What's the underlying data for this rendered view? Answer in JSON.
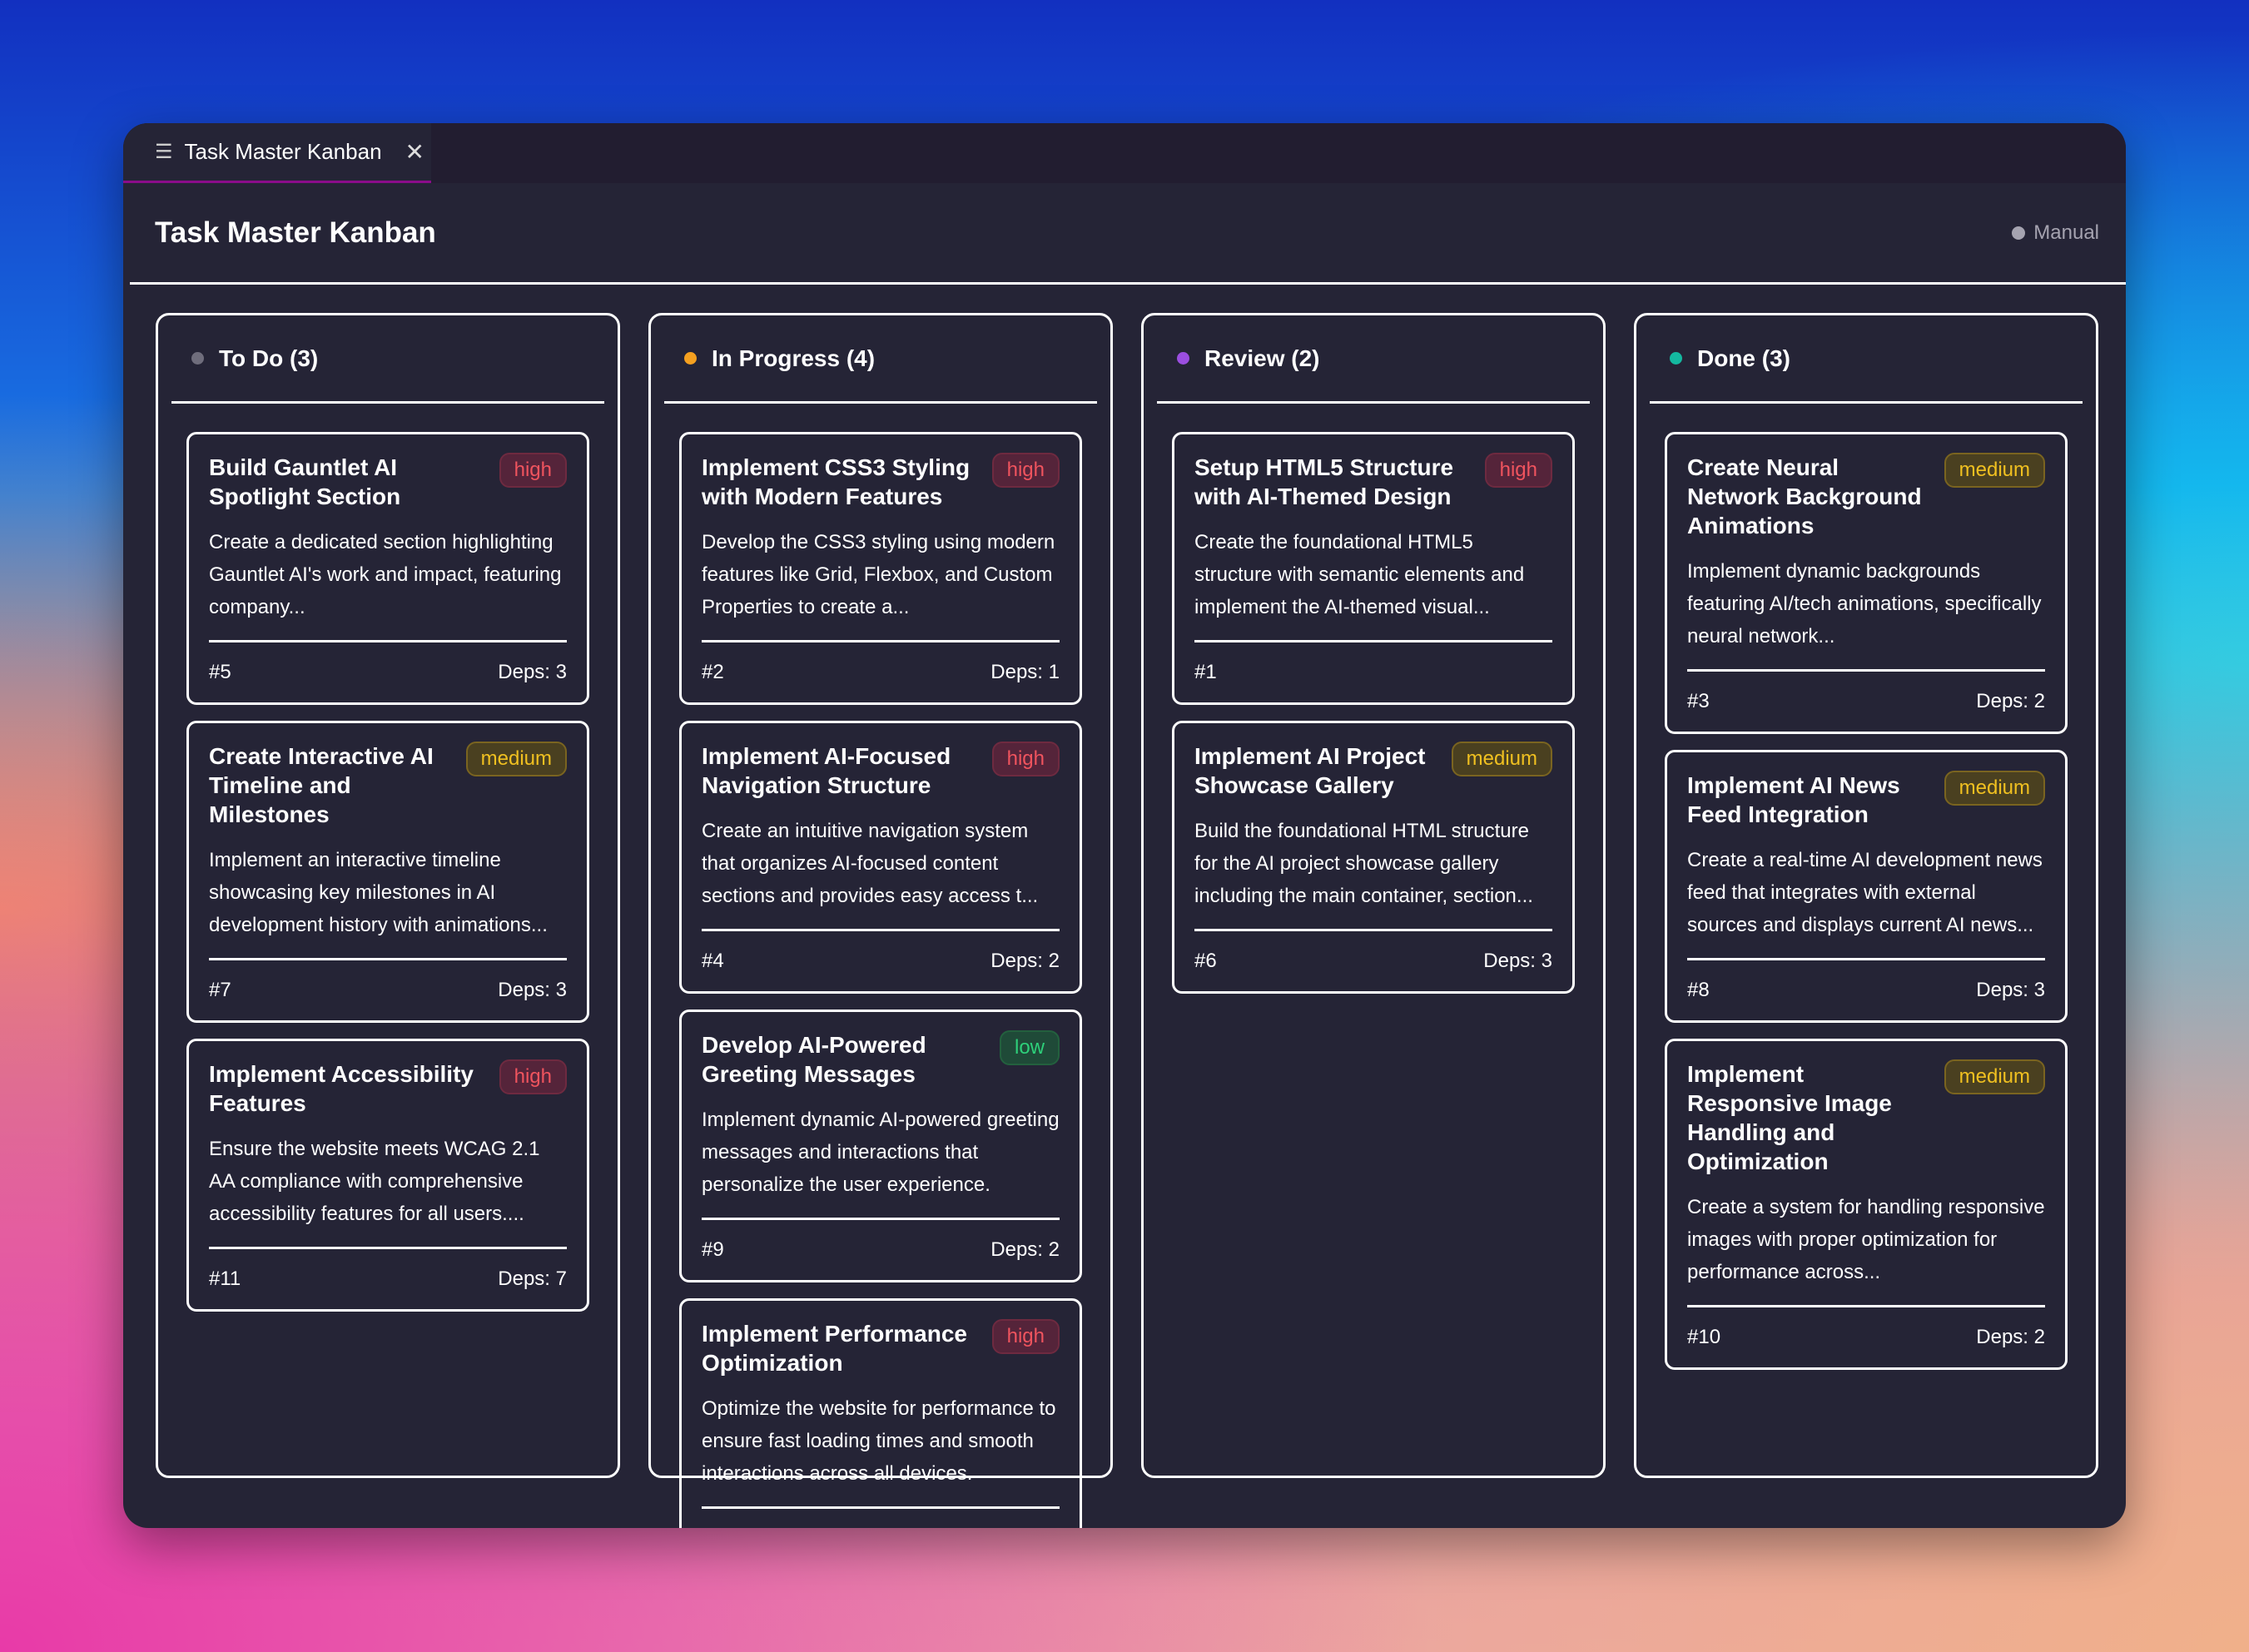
{
  "tab": {
    "label": "Task Master Kanban",
    "icon": "list-icon",
    "close_icon": "close-icon"
  },
  "header": {
    "title": "Task Master Kanban",
    "mode": "Manual"
  },
  "columns": [
    {
      "title": "To Do (3)",
      "color": "#6f6d7c",
      "cards": [
        {
          "title": "Build Gauntlet AI Spotlight Section",
          "priority": "high",
          "desc": "Create a dedicated section highlighting Gauntlet AI's work and impact, featuring company...",
          "id": "#5",
          "deps": "Deps: 3"
        },
        {
          "title": "Create Interactive AI Timeline and Milestones",
          "priority": "medium",
          "desc": "Implement an interactive timeline showcasing key milestones in AI development history with animations...",
          "id": "#7",
          "deps": "Deps: 3"
        },
        {
          "title": "Implement Accessibility Features",
          "priority": "high",
          "desc": "Ensure the website meets WCAG 2.1 AA compliance with comprehensive accessibility features for all users....",
          "id": "#11",
          "deps": "Deps: 7"
        }
      ]
    },
    {
      "title": "In Progress (4)",
      "color": "#f5a020",
      "cards": [
        {
          "title": "Implement CSS3 Styling with Modern Features",
          "priority": "high",
          "desc": "Develop the CSS3 styling using modern features like Grid, Flexbox, and Custom Properties to create a...",
          "id": "#2",
          "deps": "Deps: 1"
        },
        {
          "title": "Implement AI-Focused Navigation Structure",
          "priority": "high",
          "desc": "Create an intuitive navigation system that organizes AI-focused content sections and provides easy access t...",
          "id": "#4",
          "deps": "Deps: 2"
        },
        {
          "title": "Develop AI-Powered Greeting Messages",
          "priority": "low",
          "desc": "Implement dynamic AI-powered greeting messages and interactions that personalize the user experience.",
          "id": "#9",
          "deps": "Deps: 2"
        },
        {
          "title": "Implement Performance Optimization",
          "priority": "high",
          "desc": "Optimize the website for performance to ensure fast loading times and smooth interactions across all devices.",
          "id": "",
          "deps": ""
        }
      ]
    },
    {
      "title": "Review (2)",
      "color": "#9b4ee0",
      "cards": [
        {
          "title": "Setup HTML5 Structure with AI-Themed Design",
          "priority": "high",
          "desc": "Create the foundational HTML5 structure with semantic elements and implement the AI-themed visual...",
          "id": "#1",
          "deps": ""
        },
        {
          "title": "Implement AI Project Showcase Gallery",
          "priority": "medium",
          "desc": "Build the foundational HTML structure for the AI project showcase gallery including the main container, section...",
          "id": "#6",
          "deps": "Deps: 3"
        }
      ]
    },
    {
      "title": "Done (3)",
      "color": "#14b8a0",
      "cards": [
        {
          "title": "Create Neural Network Background Animations",
          "priority": "medium",
          "desc": "Implement dynamic backgrounds featuring AI/tech animations, specifically neural network...",
          "id": "#3",
          "deps": "Deps: 2"
        },
        {
          "title": "Implement AI News Feed Integration",
          "priority": "medium",
          "desc": "Create a real-time AI development news feed that integrates with external sources and displays current AI news...",
          "id": "#8",
          "deps": "Deps: 3"
        },
        {
          "title": "Implement Responsive Image Handling and Optimization",
          "priority": "medium",
          "desc": "Create a system for handling responsive images with proper optimization for performance across...",
          "id": "#10",
          "deps": "Deps: 2"
        }
      ]
    }
  ]
}
